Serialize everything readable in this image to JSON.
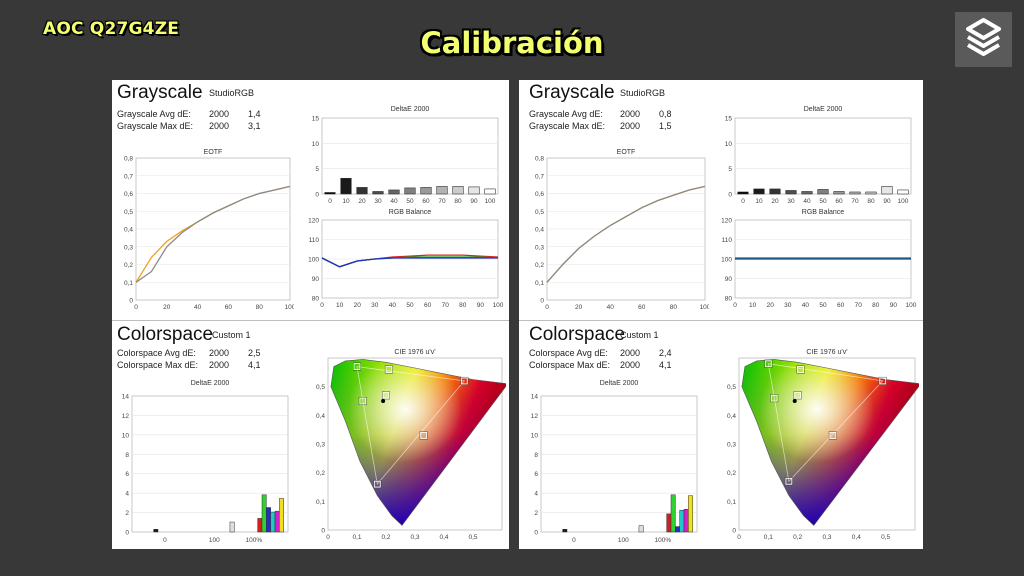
{
  "header": {
    "monitor": "AOC Q27G4ZE",
    "title": "Calibración"
  },
  "panels": [
    {
      "grayscale": {
        "title": "Grayscale",
        "mode": "StudioRGB",
        "avg_label": "Grayscale Avg dE:",
        "avg_ref": "2000",
        "avg_value": "1,4",
        "max_label": "Grayscale Max dE:",
        "max_ref": "2000",
        "max_value": "3,1"
      },
      "colorspace": {
        "title": "Colorspace",
        "mode": "Custom 1",
        "avg_label": "Colorspace Avg dE:",
        "avg_ref": "2000",
        "avg_value": "2,5",
        "max_label": "Colorspace Max dE:",
        "max_ref": "2000",
        "max_value": "4,1"
      }
    },
    {
      "grayscale": {
        "title": "Grayscale",
        "mode": "StudioRGB",
        "avg_label": "Grayscale Avg dE:",
        "avg_ref": "2000",
        "avg_value": "0,8",
        "max_label": "Grayscale Max dE:",
        "max_ref": "2000",
        "max_value": "1,5"
      },
      "colorspace": {
        "title": "Colorspace",
        "mode": "Custom 1",
        "avg_label": "Colorspace Avg dE:",
        "avg_ref": "2000",
        "avg_value": "2,4",
        "max_label": "Colorspace Max dE:",
        "max_ref": "2000",
        "max_value": "4,1"
      }
    }
  ],
  "chart_data": [
    {
      "panel": 0,
      "type": "line",
      "title": "EOTF",
      "x": [
        0,
        10,
        20,
        30,
        40,
        50,
        60,
        70,
        80,
        90,
        100
      ],
      "xlim": [
        0,
        100
      ],
      "ylim": [
        0,
        0.8
      ],
      "xticks": [
        "0",
        "20",
        "40",
        "60",
        "80",
        "100"
      ],
      "yticks": [
        "0",
        "0,1",
        "0,2",
        "0,3",
        "0,4",
        "0,5",
        "0,6",
        "0,7",
        "0,8"
      ],
      "series": [
        {
          "color": "#f0a020",
          "values": [
            0.1,
            0.24,
            0.33,
            0.39,
            0.44,
            0.49,
            0.53,
            0.57,
            0.6,
            0.62,
            0.64
          ]
        },
        {
          "color": "#8a8a8a",
          "values": [
            0.1,
            0.16,
            0.3,
            0.38,
            0.44,
            0.49,
            0.53,
            0.57,
            0.6,
            0.62,
            0.64
          ]
        }
      ]
    },
    {
      "panel": 0,
      "type": "bar",
      "title": "DeltaE 2000",
      "categories": [
        "0",
        "10",
        "20",
        "30",
        "40",
        "50",
        "60",
        "70",
        "80",
        "90",
        "100"
      ],
      "values": [
        0.3,
        3.1,
        1.3,
        0.5,
        0.8,
        1.2,
        1.3,
        1.5,
        1.5,
        1.4,
        1.0
      ],
      "ylim": [
        0,
        15
      ],
      "yticks": [
        "0",
        "5",
        "10",
        "15"
      ]
    },
    {
      "panel": 0,
      "type": "line",
      "title": "RGB Balance",
      "x": [
        0,
        10,
        20,
        30,
        40,
        50,
        60,
        70,
        80,
        90,
        100
      ],
      "xlim": [
        0,
        100
      ],
      "ylim": [
        80,
        120
      ],
      "xticks": [
        "0",
        "10",
        "20",
        "30",
        "40",
        "50",
        "60",
        "70",
        "80",
        "90",
        "100"
      ],
      "yticks": [
        "80",
        "90",
        "100",
        "110",
        "120"
      ],
      "series": [
        {
          "color": "#e02020",
          "values": [
            100.5,
            96,
            99,
            100,
            101,
            101.5,
            102,
            102,
            102,
            101.5,
            101
          ]
        },
        {
          "color": "#20a020",
          "values": [
            100.5,
            96,
            99,
            100,
            100.5,
            101,
            101,
            101,
            101,
            101,
            100.5
          ]
        },
        {
          "color": "#2030c0",
          "values": [
            100.5,
            96,
            99,
            100,
            100.5,
            100.5,
            100.5,
            100.5,
            100.5,
            100.5,
            100.5
          ]
        }
      ]
    },
    {
      "panel": 0,
      "type": "bar",
      "title": "DeltaE 2000",
      "categories": [
        "0",
        "100",
        "100%"
      ],
      "xticks": [
        "0",
        "100",
        "100%"
      ],
      "ylim": [
        0,
        15
      ],
      "yticks": [
        "0",
        "2",
        "4",
        "6",
        "8",
        "10",
        "12",
        "14"
      ],
      "bars": [
        {
          "color": "#1a1a1a",
          "value": 0.3,
          "x": 25
        },
        {
          "color": "#dddddd",
          "value": 1.1,
          "x": 113
        },
        {
          "color": "#d02020",
          "value": 1.5,
          "x": 145
        },
        {
          "color": "#30d030",
          "value": 4.1,
          "x": 150
        },
        {
          "color": "#2030c0",
          "value": 2.7,
          "x": 155
        },
        {
          "color": "#20c8c8",
          "value": 2.2,
          "x": 160
        },
        {
          "color": "#d020d0",
          "value": 2.3,
          "x": 165
        },
        {
          "color": "#f0e020",
          "value": 3.7,
          "x": 170
        }
      ]
    },
    {
      "panel": 0,
      "type": "scatter",
      "title": "CIE 1976 u'v'",
      "xlim": [
        0,
        0.6
      ],
      "ylim": [
        0,
        0.6
      ],
      "xticks": [
        "0",
        "0,1",
        "0,2",
        "0,3",
        "0,4",
        "0,5"
      ],
      "yticks": [
        "0",
        "0,1",
        "0,2",
        "0,3",
        "0,4",
        "0,5"
      ],
      "targets": [
        [
          0.1,
          0.57
        ],
        [
          0.21,
          0.56
        ],
        [
          0.47,
          0.52
        ],
        [
          0.33,
          0.33
        ],
        [
          0.17,
          0.16
        ],
        [
          0.12,
          0.45
        ],
        [
          0.2,
          0.47
        ]
      ],
      "white_point": [
        0.19,
        0.45
      ]
    },
    {
      "panel": 1,
      "type": "line",
      "title": "EOTF",
      "x": [
        0,
        10,
        20,
        30,
        40,
        50,
        60,
        70,
        80,
        90,
        100
      ],
      "xlim": [
        0,
        100
      ],
      "ylim": [
        0,
        0.8
      ],
      "xticks": [
        "0",
        "20",
        "40",
        "60",
        "80",
        "100"
      ],
      "yticks": [
        "0",
        "0,1",
        "0,2",
        "0,3",
        "0,4",
        "0,5",
        "0,6",
        "0,7",
        "0,8"
      ],
      "series": [
        {
          "color": "#f0a020",
          "values": [
            0.1,
            0.2,
            0.29,
            0.36,
            0.42,
            0.47,
            0.52,
            0.56,
            0.59,
            0.62,
            0.64
          ]
        },
        {
          "color": "#8a8a8a",
          "values": [
            0.1,
            0.2,
            0.29,
            0.36,
            0.42,
            0.47,
            0.52,
            0.56,
            0.59,
            0.62,
            0.64
          ]
        }
      ]
    },
    {
      "panel": 1,
      "type": "bar",
      "title": "DeltaE 2000",
      "categories": [
        "0",
        "10",
        "20",
        "30",
        "40",
        "50",
        "60",
        "70",
        "80",
        "90",
        "100"
      ],
      "values": [
        0.4,
        1.0,
        1.0,
        0.7,
        0.5,
        0.9,
        0.5,
        0.4,
        0.4,
        1.5,
        0.8
      ],
      "ylim": [
        0,
        15
      ],
      "yticks": [
        "0",
        "5",
        "10",
        "15"
      ]
    },
    {
      "panel": 1,
      "type": "line",
      "title": "RGB Balance",
      "x": [
        0,
        10,
        20,
        30,
        40,
        50,
        60,
        70,
        80,
        90,
        100
      ],
      "xlim": [
        0,
        100
      ],
      "ylim": [
        80,
        120
      ],
      "xticks": [
        "0",
        "10",
        "20",
        "30",
        "40",
        "50",
        "60",
        "70",
        "80",
        "90",
        "100"
      ],
      "yticks": [
        "80",
        "90",
        "100",
        "110",
        "120"
      ],
      "series": [
        {
          "color": "#e02020",
          "values": [
            100.5,
            100.5,
            100.5,
            100.5,
            100.5,
            100.5,
            100.5,
            100.5,
            100.5,
            100.5,
            100.5
          ]
        },
        {
          "color": "#20a020",
          "values": [
            100.5,
            100.5,
            100.5,
            100.5,
            100.5,
            100.5,
            100.5,
            100.5,
            100.5,
            100.5,
            100.5
          ]
        },
        {
          "color": "#2030c0",
          "values": [
            100,
            100,
            100,
            100,
            100,
            100,
            100,
            100,
            100,
            100,
            100
          ]
        }
      ]
    },
    {
      "panel": 1,
      "type": "bar",
      "title": "DeltaE 2000",
      "categories": [
        "0",
        "100",
        "100%"
      ],
      "xticks": [
        "0",
        "100",
        "100%"
      ],
      "ylim": [
        0,
        15
      ],
      "yticks": [
        "0",
        "2",
        "4",
        "6",
        "8",
        "10",
        "12",
        "14"
      ],
      "bars": [
        {
          "color": "#1a1a1a",
          "value": 0.3,
          "x": 25
        },
        {
          "color": "#dddddd",
          "value": 0.7,
          "x": 113
        },
        {
          "color": "#d02020",
          "value": 2.0,
          "x": 145
        },
        {
          "color": "#30d030",
          "value": 4.1,
          "x": 150
        },
        {
          "color": "#2030c0",
          "value": 0.6,
          "x": 155
        },
        {
          "color": "#20c8c8",
          "value": 2.4,
          "x": 160
        },
        {
          "color": "#d020d0",
          "value": 2.5,
          "x": 165
        },
        {
          "color": "#f0e020",
          "value": 4.0,
          "x": 170
        }
      ]
    },
    {
      "panel": 1,
      "type": "scatter",
      "title": "CIE 1976 u'v'",
      "xlim": [
        0,
        0.6
      ],
      "ylim": [
        0,
        0.6
      ],
      "xticks": [
        "0",
        "0,1",
        "0,2",
        "0,3",
        "0,4",
        "0,5"
      ],
      "yticks": [
        "0",
        "0,1",
        "0,2",
        "0,3",
        "0,4",
        "0,5"
      ],
      "targets": [
        [
          0.1,
          0.58
        ],
        [
          0.21,
          0.56
        ],
        [
          0.49,
          0.52
        ],
        [
          0.32,
          0.33
        ],
        [
          0.17,
          0.17
        ],
        [
          0.12,
          0.46
        ],
        [
          0.2,
          0.47
        ]
      ],
      "white_point": [
        0.19,
        0.45
      ]
    }
  ]
}
